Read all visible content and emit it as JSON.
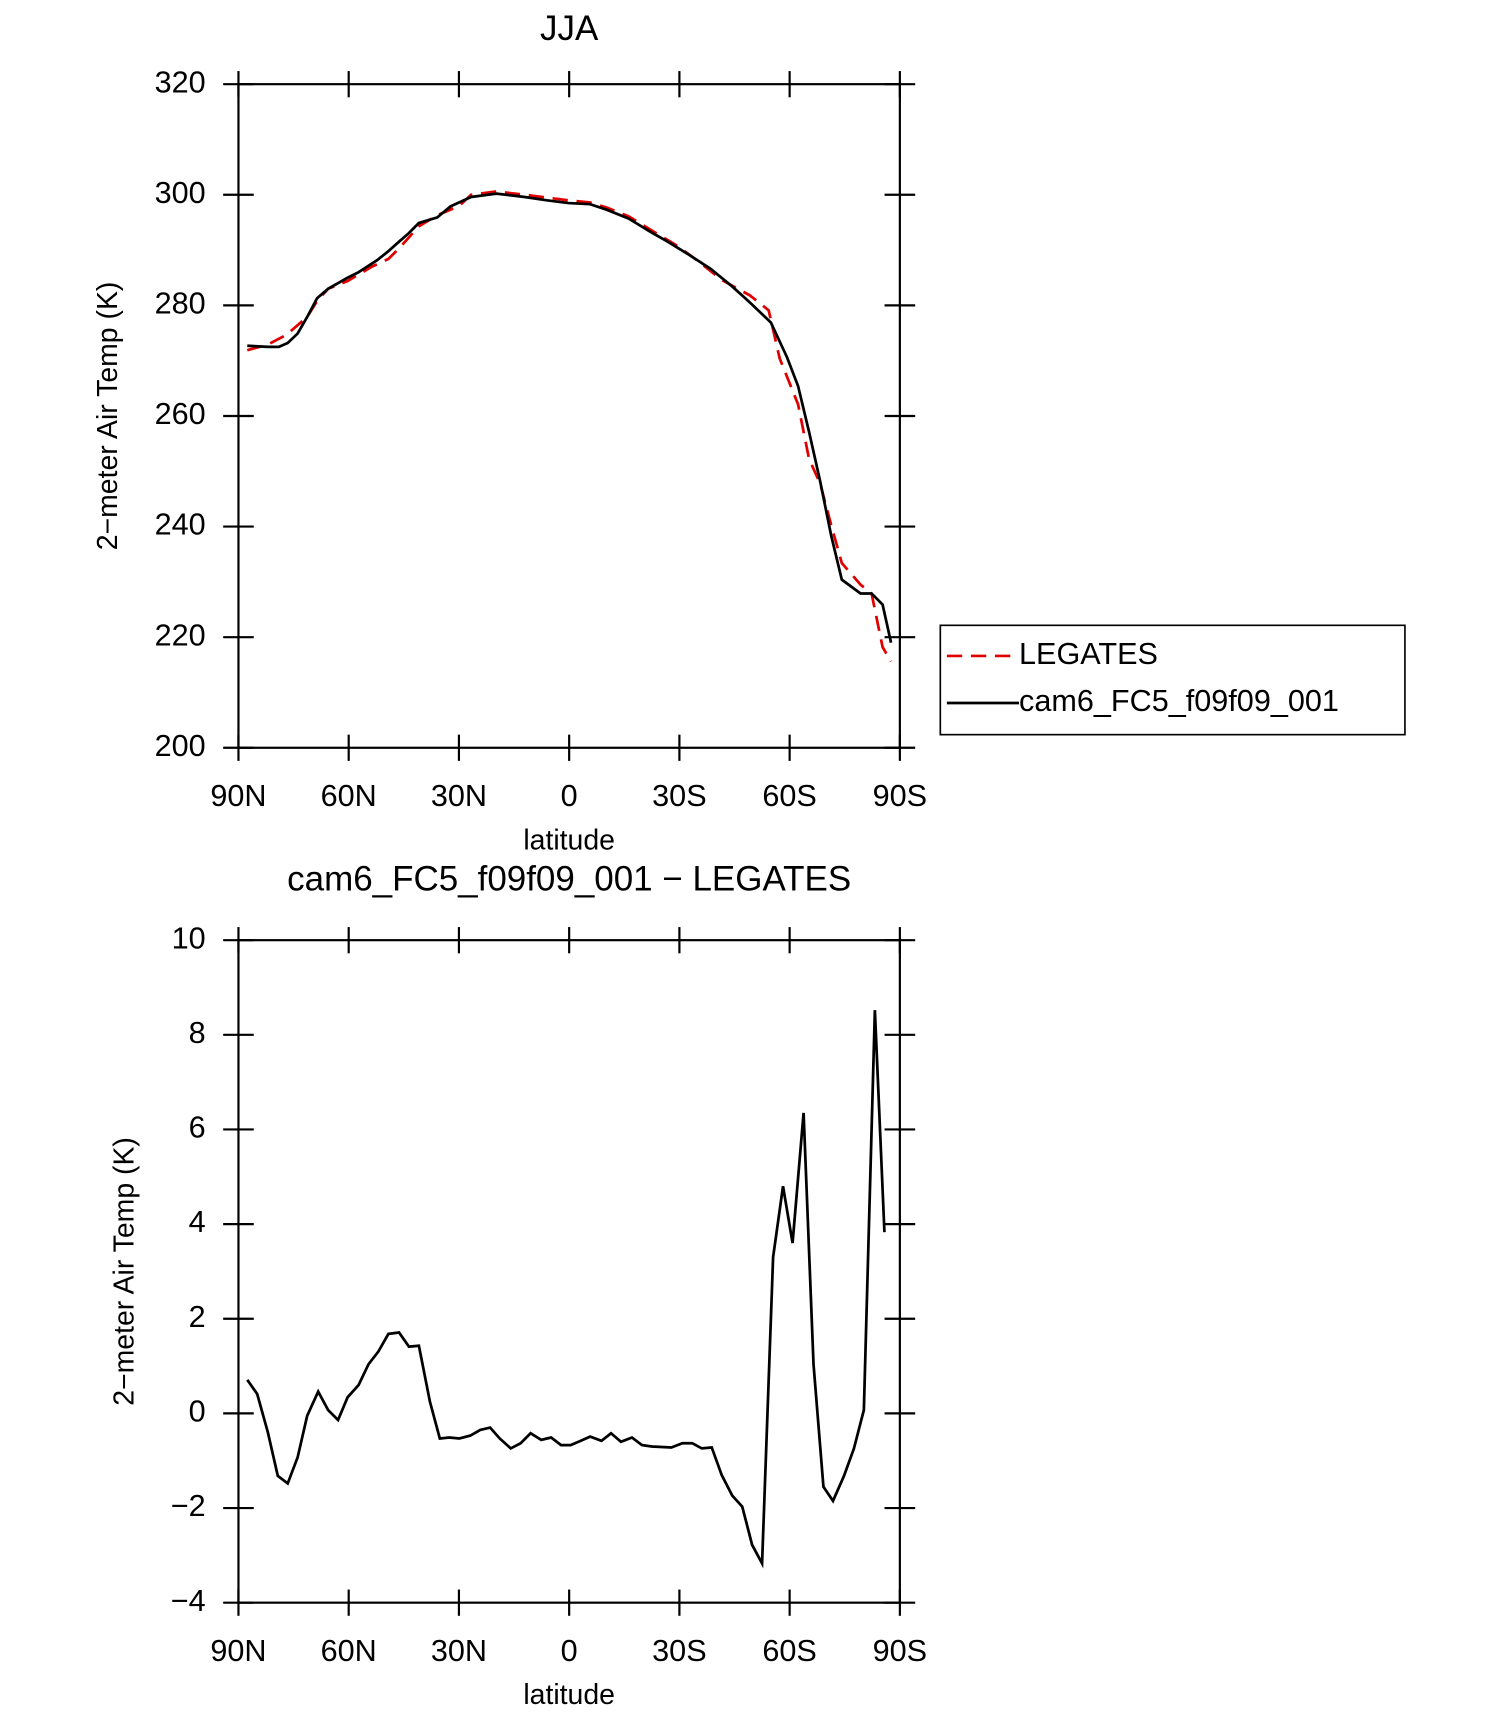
{
  "chart_data": [
    {
      "type": "line",
      "title": "JJA",
      "xlabel": "latitude",
      "ylabel": "2−meter Air Temp (K)",
      "xlim": [
        90,
        -90
      ],
      "xticks": [
        {
          "value": 90,
          "label": "90N"
        },
        {
          "value": 60,
          "label": "60N"
        },
        {
          "value": 30,
          "label": "30N"
        },
        0,
        {
          "value": -30,
          "label": "30S"
        },
        {
          "value": -60,
          "label": "60S"
        },
        {
          "value": -90,
          "label": "90S"
        }
      ],
      "ylim": [
        200,
        320
      ],
      "yticks": [
        200,
        220,
        240,
        260,
        280,
        300,
        320
      ],
      "legend": "right",
      "series": [
        {
          "name": "LEGATES",
          "color": "#e00000",
          "dash": true,
          "x": [
            87.6,
            82.0,
            76.9,
            71.3,
            68.6,
            65.6,
            60.3,
            53.7,
            49.2,
            46.3,
            40.9,
            35.9,
            29.9,
            26.7,
            19.8,
            12.1,
            0.2,
            -5.7,
            -10.2,
            -16.2,
            -22.1,
            -29.6,
            -35.5,
            -41.5,
            -49.2,
            -54.3,
            -57.3,
            -62.3,
            -65.3,
            -68.3,
            -71.3,
            -74.2,
            -79.3,
            -82.3,
            -85.3,
            -87.6
          ],
          "values": [
            271.9,
            272.9,
            274.7,
            277.9,
            280.8,
            283.0,
            284.4,
            287.0,
            288.4,
            290.3,
            294.3,
            296.3,
            298.0,
            300.0,
            300.6,
            300.0,
            299.0,
            298.6,
            297.7,
            296.1,
            293.7,
            290.7,
            287.8,
            284.6,
            281.8,
            279.1,
            270.4,
            262.1,
            252.2,
            247.8,
            240.3,
            233.4,
            229.5,
            227.9,
            218.2,
            215.6
          ]
        },
        {
          "name": "cam6_FC5_f09f09_001",
          "color": "#000000",
          "dash": false,
          "x": [
            87.6,
            82.0,
            79.0,
            76.6,
            73.9,
            71.3,
            68.6,
            65.6,
            60.3,
            57.3,
            52.2,
            49.2,
            46.0,
            43.9,
            40.9,
            35.9,
            32.3,
            26.7,
            19.8,
            12.1,
            6.1,
            0.2,
            -5.7,
            -10.2,
            -16.2,
            -22.1,
            -26.6,
            -32.5,
            -38.5,
            -44.4,
            -48.9,
            -54.9,
            -59.3,
            -62.3,
            -65.3,
            -68.3,
            -71.3,
            -74.2,
            -79.3,
            -82.3,
            -85.3,
            -87.6
          ],
          "values": [
            272.7,
            272.5,
            272.5,
            273.2,
            274.9,
            277.9,
            281.3,
            283.0,
            285.0,
            286.0,
            288.2,
            289.8,
            291.7,
            292.9,
            294.9,
            295.9,
            297.9,
            299.6,
            300.2,
            299.6,
            299.0,
            298.5,
            298.3,
            297.3,
            295.7,
            293.3,
            291.6,
            289.2,
            286.6,
            283.4,
            280.7,
            276.9,
            270.6,
            265.4,
            257.1,
            248.2,
            238.4,
            230.4,
            227.9,
            227.9,
            225.9,
            219.0
          ]
        }
      ]
    },
    {
      "type": "line",
      "title": "cam6_FC5_f09f09_001 − LEGATES",
      "xlabel": "latitude",
      "ylabel": "2−meter Air Temp (K)",
      "xlim": [
        90,
        -90
      ],
      "xticks": [
        {
          "value": 90,
          "label": "90N"
        },
        {
          "value": 60,
          "label": "60N"
        },
        {
          "value": 30,
          "label": "30N"
        },
        0,
        {
          "value": -30,
          "label": "30S"
        },
        {
          "value": -60,
          "label": "60S"
        },
        {
          "value": -90,
          "label": "90S"
        }
      ],
      "ylim": [
        -4,
        10
      ],
      "yticks": [
        {
          "value": -4,
          "label": "−4"
        },
        {
          "value": -2,
          "label": "−2"
        },
        0,
        2,
        4,
        6,
        8,
        10
      ],
      "color": "#000000",
      "x": [
        87.6,
        84.9,
        82.0,
        79.3,
        76.6,
        73.9,
        71.3,
        68.3,
        65.6,
        62.9,
        60.3,
        57.3,
        54.6,
        51.9,
        49.2,
        46.3,
        43.6,
        40.9,
        37.9,
        35.2,
        32.6,
        29.9,
        26.9,
        24.2,
        21.5,
        18.9,
        15.9,
        13.2,
        10.5,
        7.6,
        4.9,
        2.2,
        -0.4,
        -3.1,
        -5.7,
        -8.8,
        -11.4,
        -14.1,
        -17.1,
        -19.8,
        -22.5,
        -27.8,
        -30.8,
        -33.5,
        -36.1,
        -38.8,
        -41.5,
        -44.4,
        -47.1,
        -49.8,
        -52.5,
        -55.5,
        -58.2,
        -60.8,
        -63.8,
        -66.5,
        -69.2,
        -71.8,
        -74.8,
        -77.5,
        -80.2,
        -83.2,
        -85.8
      ],
      "values": [
        0.71,
        0.41,
        -0.4,
        -1.32,
        -1.48,
        -0.93,
        -0.05,
        0.46,
        0.07,
        -0.14,
        0.34,
        0.6,
        1.04,
        1.31,
        1.68,
        1.71,
        1.41,
        1.43,
        0.25,
        -0.53,
        -0.51,
        -0.53,
        -0.47,
        -0.35,
        -0.3,
        -0.53,
        -0.74,
        -0.63,
        -0.42,
        -0.56,
        -0.51,
        -0.67,
        -0.67,
        -0.58,
        -0.49,
        -0.58,
        -0.42,
        -0.6,
        -0.51,
        -0.67,
        -0.7,
        -0.72,
        -0.63,
        -0.63,
        -0.74,
        -0.72,
        -1.3,
        -1.74,
        -1.97,
        -2.78,
        -3.17,
        3.3,
        4.8,
        3.6,
        6.35,
        1.04,
        -1.55,
        -1.85,
        -1.32,
        -0.74,
        0.07,
        8.52,
        3.83
      ]
    }
  ]
}
